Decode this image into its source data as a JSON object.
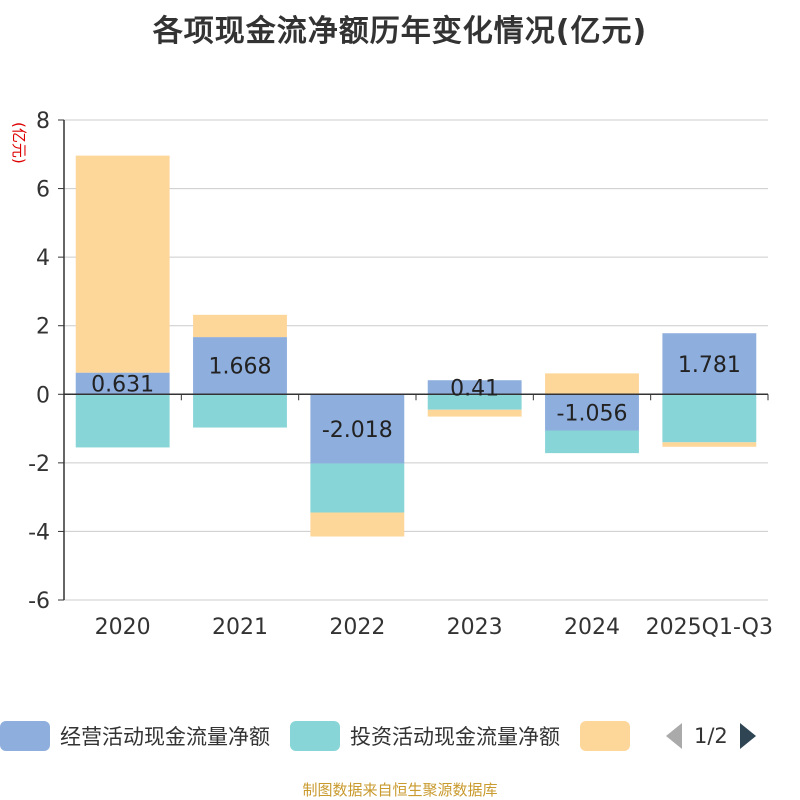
{
  "chart_data": {
    "type": "bar",
    "stacked": true,
    "title": "各项现金流净额历年变化情况(亿元)",
    "ylabel": "(亿元)",
    "xlabel": "",
    "ylim": [
      -6,
      8
    ],
    "yticks": [
      -6,
      -4,
      -2,
      0,
      2,
      4,
      6,
      8
    ],
    "categories": [
      "2020",
      "2021",
      "2022",
      "2023",
      "2024",
      "2025Q1-Q3"
    ],
    "series": [
      {
        "name": "经营活动现金流量净额",
        "color": "#8eaedd",
        "values": [
          0.631,
          1.668,
          -2.018,
          0.41,
          -1.056,
          1.781
        ],
        "labels": [
          "0.631",
          "1.668",
          "-2.018",
          "0.41",
          "-1.056",
          "1.781"
        ]
      },
      {
        "name": "投资活动现金流量净额",
        "color": "#88d5d7",
        "values": [
          -1.55,
          -0.97,
          -1.43,
          -0.45,
          -0.66,
          -1.4
        ]
      },
      {
        "name": "",
        "color": "#fdd699",
        "values": [
          6.33,
          0.65,
          -0.7,
          -0.2,
          0.61,
          -0.13
        ]
      }
    ],
    "grid": true,
    "legend_position": "bottom"
  },
  "legend": {
    "page": "1/2"
  },
  "source": "制图数据来自恒生聚源数据库"
}
